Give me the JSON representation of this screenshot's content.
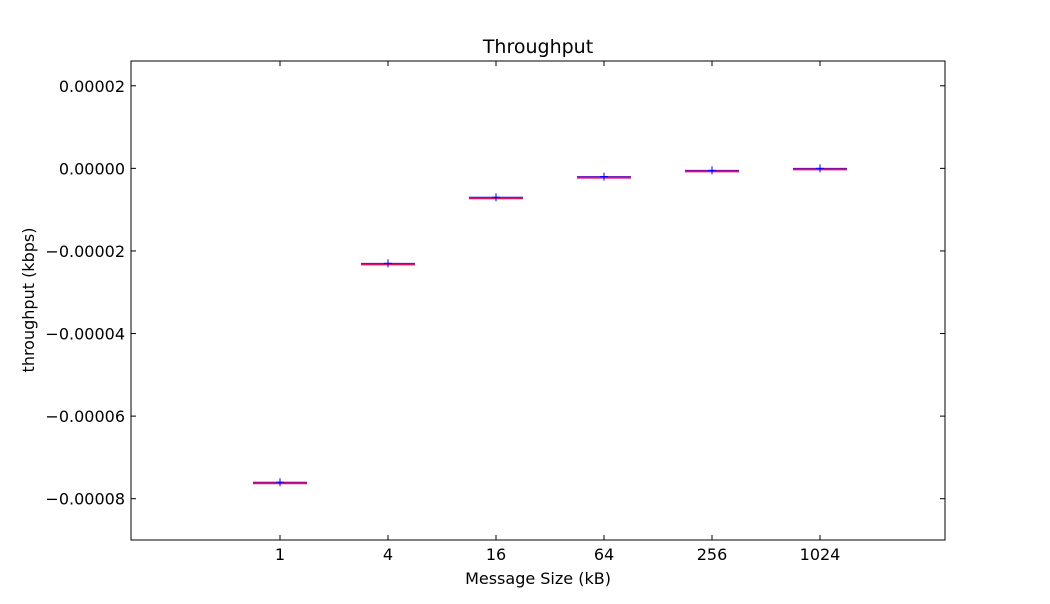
{
  "chart_data": {
    "type": "box",
    "title": "Throughput",
    "xlabel": "Message Size (kB)",
    "ylabel": "throughput (kbps)",
    "categories": [
      "1",
      "4",
      "16",
      "64",
      "256",
      "1024"
    ],
    "values": [
      -7.6e-05,
      -2.3e-05,
      -7e-06,
      -2e-06,
      -5e-07,
      0.0
    ],
    "ylim": [
      -9e-05,
      2.6e-05
    ],
    "yticks": [
      -8e-05,
      -6e-05,
      -4e-05,
      -2e-05,
      0.0,
      2e-05
    ],
    "ytick_labels": [
      "−0.00008",
      "−0.00006",
      "−0.00004",
      "−0.00002",
      "0.00000",
      "0.00002"
    ],
    "grid": false,
    "colors": {
      "median": "#e0115f",
      "box": "#0000ff",
      "outlier": "#0000ff"
    }
  }
}
